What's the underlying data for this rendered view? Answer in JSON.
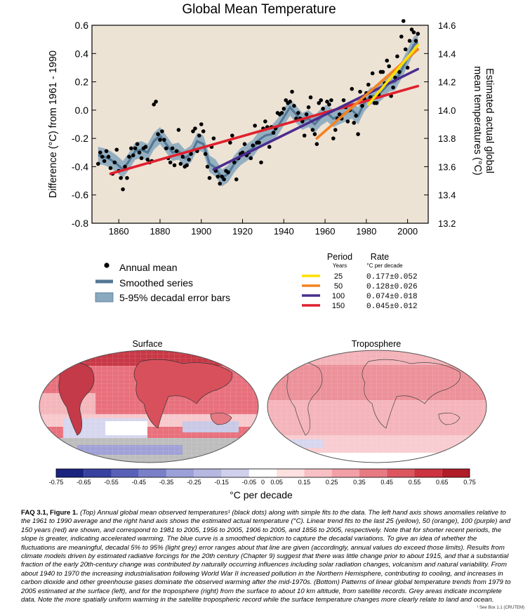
{
  "chart_data": [
    {
      "type": "scatter",
      "title": "Global Mean Temperature",
      "ylabel": "Difference (°C) from 1961 - 1990",
      "ylabel_right": "Estimated actual global mean temperatures (°C)",
      "xlim": [
        1847,
        2010
      ],
      "ylim": [
        -0.8,
        0.6
      ],
      "ylim_right": [
        13.2,
        14.6
      ],
      "x_ticks": [
        "1860",
        "1880",
        "1900",
        "1920",
        "1940",
        "1960",
        "1980",
        "2000"
      ],
      "y_ticks": [
        "0.6",
        "0.4",
        "0.2",
        "0.0",
        "-0.2",
        "-0.4",
        "-0.6",
        "-0.8"
      ],
      "y_ticks_right": [
        "14.6",
        "14.4",
        "14.2",
        "14.0",
        "13.8",
        "13.6",
        "13.4",
        "13.2"
      ],
      "grid": false,
      "background": "#ede3d5",
      "annual_mean": {
        "name": "Annual mean",
        "x": [
          1850,
          1851,
          1852,
          1853,
          1854,
          1855,
          1856,
          1857,
          1858,
          1859,
          1860,
          1861,
          1862,
          1863,
          1864,
          1865,
          1866,
          1867,
          1868,
          1869,
          1870,
          1871,
          1872,
          1873,
          1874,
          1875,
          1876,
          1877,
          1878,
          1879,
          1880,
          1881,
          1882,
          1883,
          1884,
          1885,
          1886,
          1887,
          1888,
          1889,
          1890,
          1891,
          1892,
          1893,
          1894,
          1895,
          1896,
          1897,
          1898,
          1899,
          1900,
          1901,
          1902,
          1903,
          1904,
          1905,
          1906,
          1907,
          1908,
          1909,
          1910,
          1911,
          1912,
          1913,
          1914,
          1915,
          1916,
          1917,
          1918,
          1919,
          1920,
          1921,
          1922,
          1923,
          1924,
          1925,
          1926,
          1927,
          1928,
          1929,
          1930,
          1931,
          1932,
          1933,
          1934,
          1935,
          1936,
          1937,
          1938,
          1939,
          1940,
          1941,
          1942,
          1943,
          1944,
          1945,
          1946,
          1947,
          1948,
          1949,
          1950,
          1951,
          1952,
          1953,
          1954,
          1955,
          1956,
          1957,
          1958,
          1959,
          1960,
          1961,
          1962,
          1963,
          1964,
          1965,
          1966,
          1967,
          1968,
          1969,
          1970,
          1971,
          1972,
          1973,
          1974,
          1975,
          1976,
          1977,
          1978,
          1979,
          1980,
          1981,
          1982,
          1983,
          1984,
          1985,
          1986,
          1987,
          1988,
          1989,
          1990,
          1991,
          1992,
          1993,
          1994,
          1995,
          1996,
          1997,
          1998,
          1999,
          2000,
          2001,
          2002,
          2003,
          2004,
          2005
        ],
        "y": [
          -0.38,
          -0.3,
          -0.33,
          -0.36,
          -0.29,
          -0.33,
          -0.41,
          -0.45,
          -0.37,
          -0.28,
          -0.43,
          -0.48,
          -0.56,
          -0.4,
          -0.48,
          -0.33,
          -0.27,
          -0.32,
          -0.27,
          -0.24,
          -0.3,
          -0.34,
          -0.27,
          -0.26,
          -0.35,
          -0.37,
          -0.36,
          0.04,
          0.06,
          -0.17,
          -0.21,
          -0.15,
          -0.21,
          -0.27,
          -0.34,
          -0.37,
          -0.27,
          -0.39,
          -0.29,
          -0.14,
          -0.38,
          -0.33,
          -0.4,
          -0.39,
          -0.35,
          -0.31,
          -0.15,
          -0.13,
          -0.29,
          -0.18,
          -0.1,
          -0.15,
          -0.31,
          -0.4,
          -0.48,
          -0.26,
          -0.2,
          -0.43,
          -0.47,
          -0.52,
          -0.47,
          -0.49,
          -0.43,
          -0.44,
          -0.23,
          -0.18,
          -0.37,
          -0.49,
          -0.34,
          -0.31,
          -0.3,
          -0.24,
          -0.32,
          -0.3,
          -0.34,
          -0.25,
          -0.11,
          -0.23,
          -0.23,
          -0.37,
          -0.13,
          -0.08,
          -0.12,
          -0.26,
          -0.12,
          -0.16,
          -0.13,
          -0.02,
          -0.03,
          -0.02,
          0.01,
          0.07,
          0.05,
          0.06,
          0.13,
          0.03,
          -0.06,
          -0.02,
          -0.06,
          -0.08,
          -0.18,
          -0.03,
          0.02,
          0.09,
          -0.14,
          -0.17,
          -0.24,
          0.05,
          0.07,
          0.01,
          -0.02,
          0.06,
          0.04,
          0.07,
          -0.2,
          -0.14,
          -0.06,
          -0.03,
          -0.06,
          0.07,
          0.02,
          -0.08,
          0.0,
          0.15,
          -0.09,
          -0.04,
          -0.17,
          0.13,
          0.03,
          0.08,
          0.12,
          0.18,
          0.09,
          0.26,
          0.05,
          0.05,
          0.11,
          0.27,
          0.27,
          0.19,
          0.35,
          0.31,
          0.1,
          0.16,
          0.23,
          0.38,
          0.27,
          0.52,
          0.63,
          0.43,
          0.3,
          0.49,
          0.57,
          0.55,
          0.49,
          0.54
        ]
      },
      "smoothed": {
        "name": "Smoothed series",
        "x": [
          1850,
          1853,
          1856,
          1859,
          1862,
          1865,
          1868,
          1871,
          1874,
          1877,
          1880,
          1883,
          1886,
          1889,
          1892,
          1895,
          1898,
          1901,
          1904,
          1907,
          1910,
          1913,
          1916,
          1919,
          1922,
          1925,
          1928,
          1931,
          1934,
          1937,
          1940,
          1943,
          1946,
          1949,
          1952,
          1955,
          1958,
          1961,
          1964,
          1967,
          1970,
          1973,
          1976,
          1979,
          1982,
          1985,
          1988,
          1991,
          1994,
          1997,
          2000,
          2003,
          2005
        ],
        "y": [
          -0.32,
          -0.33,
          -0.35,
          -0.38,
          -0.42,
          -0.36,
          -0.29,
          -0.28,
          -0.3,
          -0.22,
          -0.18,
          -0.24,
          -0.3,
          -0.29,
          -0.34,
          -0.31,
          -0.22,
          -0.24,
          -0.38,
          -0.41,
          -0.48,
          -0.45,
          -0.38,
          -0.33,
          -0.3,
          -0.27,
          -0.21,
          -0.18,
          -0.17,
          -0.12,
          -0.05,
          0.02,
          -0.03,
          -0.08,
          -0.06,
          -0.1,
          -0.05,
          -0.02,
          -0.06,
          -0.04,
          -0.02,
          0.0,
          -0.04,
          0.05,
          0.1,
          0.1,
          0.14,
          0.19,
          0.2,
          0.28,
          0.37,
          0.46,
          0.48
        ],
        "band_halfwidth": 0.06
      },
      "error_bars_label": "5-95% decadal error bars",
      "trends": [
        {
          "name": "25",
          "rate": "0.177±0.052",
          "color": "#ffe000",
          "x": [
            1981,
            2005
          ],
          "y": [
            0.04,
            0.46
          ]
        },
        {
          "name": "50",
          "rate": "0.128±0.026",
          "color": "#f58220",
          "x": [
            1956,
            2005
          ],
          "y": [
            -0.2,
            0.43
          ]
        },
        {
          "name": "100",
          "rate": "0.074±0.018",
          "color": "#4b2c8e",
          "x": [
            1906,
            2005
          ],
          "y": [
            -0.42,
            0.29
          ]
        },
        {
          "name": "150",
          "rate": "0.045±0.012",
          "color": "#e0202e",
          "x": [
            1856,
            2005
          ],
          "y": [
            -0.45,
            0.17
          ]
        }
      ],
      "legend": {
        "annual_mean": "Annual mean",
        "smoothed": "Smoothed series",
        "error_bars": "5-95% decadal error bars",
        "period_header": "Period",
        "period_sub": "Years",
        "rate_header": "Rate",
        "rate_sub": "°C  per decade"
      }
    },
    {
      "type": "heatmap",
      "maps": [
        {
          "title": "Surface",
          "fill": "#e46b78"
        },
        {
          "title": "Troposphere",
          "fill": "#f2a5ab"
        }
      ],
      "colorbar": {
        "ticks": [
          "-0.75",
          "-0.65",
          "-0.55",
          "-0.45",
          "-0.35",
          "-0.25",
          "-0.15",
          "-0.05",
          "0",
          "0.05",
          "0.15",
          "0.25",
          "0.35",
          "0.45",
          "0.55",
          "0.65",
          "0.75"
        ],
        "colors": [
          "#1a237e",
          "#3840a0",
          "#5860b8",
          "#7a80c8",
          "#9ca0d8",
          "#b6b8e2",
          "#d0d0ec",
          "#ffffff",
          "#fde0e0",
          "#f8c0c4",
          "#f2a0a6",
          "#e87a84",
          "#dc5660",
          "#cc3440",
          "#b01c28",
          "#7e0a12"
        ],
        "label": "°C per decade"
      }
    }
  ],
  "caption": {
    "label": "FAQ 3.1, Figure 1.",
    "text": "(Top) Annual global mean observed temperatures¹ (black dots) along with simple fits to the data. The left hand axis shows anomalies relative to the 1961 to 1990 average and the right hand axis shows the estimated actual temperature (°C). Linear trend fits to the last 25 (yellow), 50 (orange), 100 (purple) and 150 years (red) are shown, and correspond to 1981 to 2005, 1956 to 2005, 1906 to 2005, and 1856 to 2005, respectively. Note that for shorter recent periods, the slope is greater, indicating accelerated warming. The blue curve is a smoothed depiction to capture the decadal variations. To give an idea of whether the fluctuations are meaningful, decadal 5% to 95% (light grey) error ranges about that line are given (accordingly, annual values do exceed those limits). Results from climate models driven by estimated radiative forcings for the 20th century (Chapter 9) suggest that there was little change prior to about 1915, and that a substantial fraction of the early 20th-century change was contributed by naturally occurring influences including solar radiation changes, volcanism and natural variability. From about 1940 to 1970 the increasing industrialisation following World War II increased pollution in the Northern Hemisphere, contributing to cooling, and increases in carbon dioxide and other greenhouse gases dominate the observed warming after the mid-1970s. (Bottom) Patterns of linear global temperature trends from 1979 to 2005 estimated at the surface (left), and for the troposphere (right) from the surface to about 10 km altitude, from satellite records. Grey areas indicate incomplete data. Note the more spatially uniform warming in the satellite tropospheric record while the surface temperature changes more clearly relate to land and ocean.",
    "footnote": "¹ See Box 1.1 (CRUTEM)"
  }
}
